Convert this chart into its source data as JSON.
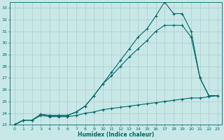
{
  "xlabel": "Humidex (Indice chaleur)",
  "background_color": "#c8e8e8",
  "grid_color": "#b0c8c8",
  "line_color": "#006868",
  "xlim": [
    -0.5,
    23.5
  ],
  "ylim": [
    23,
    33.5
  ],
  "yticks": [
    23,
    24,
    25,
    26,
    27,
    28,
    29,
    30,
    31,
    32,
    33
  ],
  "xticks": [
    0,
    1,
    2,
    3,
    4,
    5,
    6,
    7,
    8,
    9,
    10,
    11,
    12,
    13,
    14,
    15,
    16,
    17,
    18,
    19,
    20,
    21,
    22,
    23
  ],
  "series": [
    {
      "x": [
        0,
        1,
        2,
        3,
        4,
        5,
        6,
        7,
        8,
        9,
        10,
        11,
        12,
        13,
        14,
        15,
        16,
        17,
        18,
        19,
        20,
        21,
        22,
        23
      ],
      "y": [
        23,
        23.4,
        23.4,
        23.8,
        23.7,
        23.7,
        23.7,
        23.8,
        24.0,
        24.1,
        24.3,
        24.4,
        24.5,
        24.6,
        24.7,
        24.8,
        24.9,
        25.0,
        25.1,
        25.2,
        25.3,
        25.3,
        25.4,
        25.5
      ]
    },
    {
      "x": [
        0,
        1,
        2,
        3,
        4,
        5,
        6,
        7,
        8,
        9,
        10,
        11,
        12,
        13,
        14,
        15,
        16,
        17,
        18,
        19,
        20,
        21,
        22,
        23
      ],
      "y": [
        23,
        23.4,
        23.4,
        23.9,
        23.8,
        23.8,
        23.8,
        24.1,
        24.6,
        25.5,
        26.5,
        27.2,
        28.0,
        28.8,
        29.5,
        30.2,
        31.0,
        31.5,
        31.5,
        31.5,
        30.5,
        27.0,
        25.5,
        25.5
      ]
    },
    {
      "x": [
        0,
        1,
        2,
        3,
        4,
        5,
        6,
        7,
        8,
        9,
        10,
        11,
        12,
        13,
        14,
        15,
        16,
        17,
        18,
        19,
        20,
        21,
        22,
        23
      ],
      "y": [
        23,
        23.4,
        23.4,
        23.9,
        23.8,
        23.8,
        23.8,
        24.1,
        24.6,
        25.5,
        26.5,
        27.5,
        28.5,
        29.5,
        30.5,
        31.2,
        32.3,
        33.5,
        32.5,
        32.5,
        31.0,
        27.0,
        25.5,
        25.5
      ]
    }
  ]
}
